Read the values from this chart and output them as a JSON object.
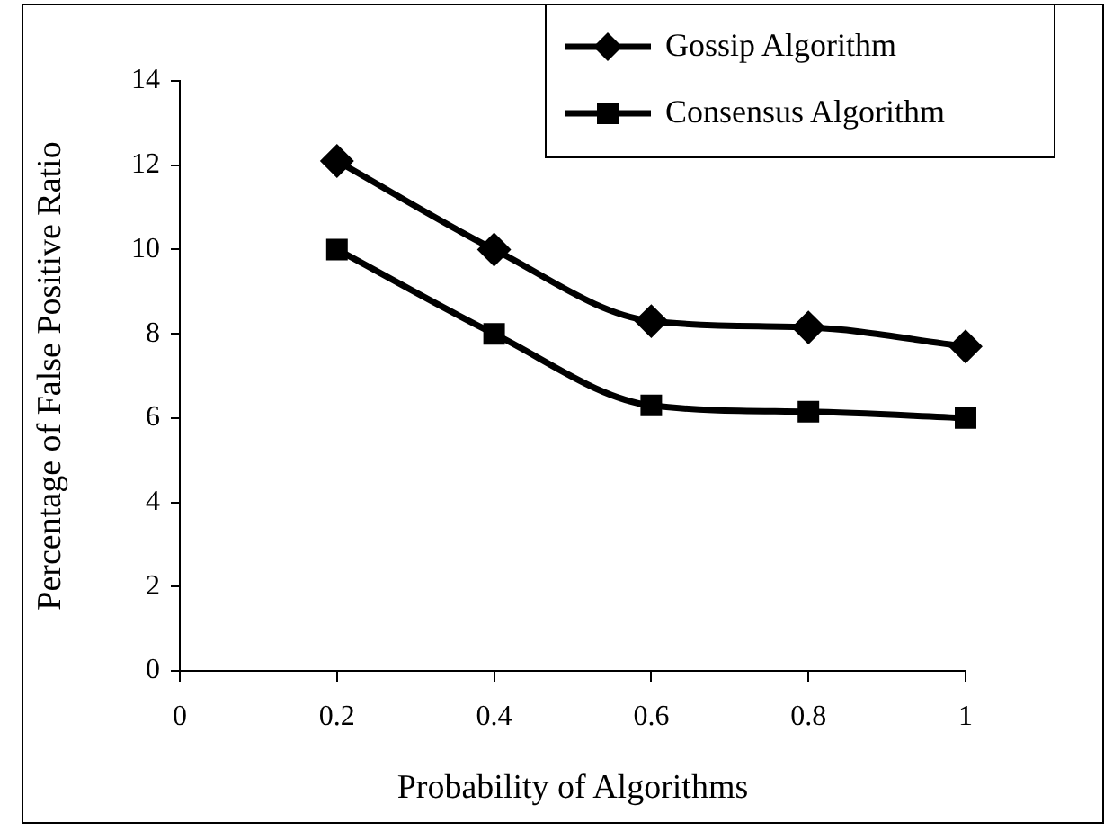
{
  "chart_data": {
    "type": "line",
    "xlabel": "Probability of Algorithms",
    "ylabel": "Percentage of False Positive Ratio",
    "x": [
      0.2,
      0.4,
      0.6,
      0.8,
      1
    ],
    "series": [
      {
        "name": "Gossip Algorithm",
        "color": "#000000",
        "marker": "diamond",
        "values": [
          12.1,
          10.0,
          8.3,
          8.15,
          7.7
        ]
      },
      {
        "name": "Consensus Algorithm",
        "color": "#000000",
        "marker": "square",
        "values": [
          10.0,
          8.0,
          6.3,
          6.15,
          6.0
        ]
      }
    ],
    "xlim": [
      0,
      1
    ],
    "xticks": [
      0,
      0.2,
      0.4,
      0.6,
      0.8,
      1
    ],
    "ylim": [
      0,
      14
    ],
    "yticks": [
      0,
      2,
      4,
      6,
      8,
      10,
      12,
      14
    ],
    "grid": false,
    "legend": "top right",
    "line_style": "solid"
  }
}
